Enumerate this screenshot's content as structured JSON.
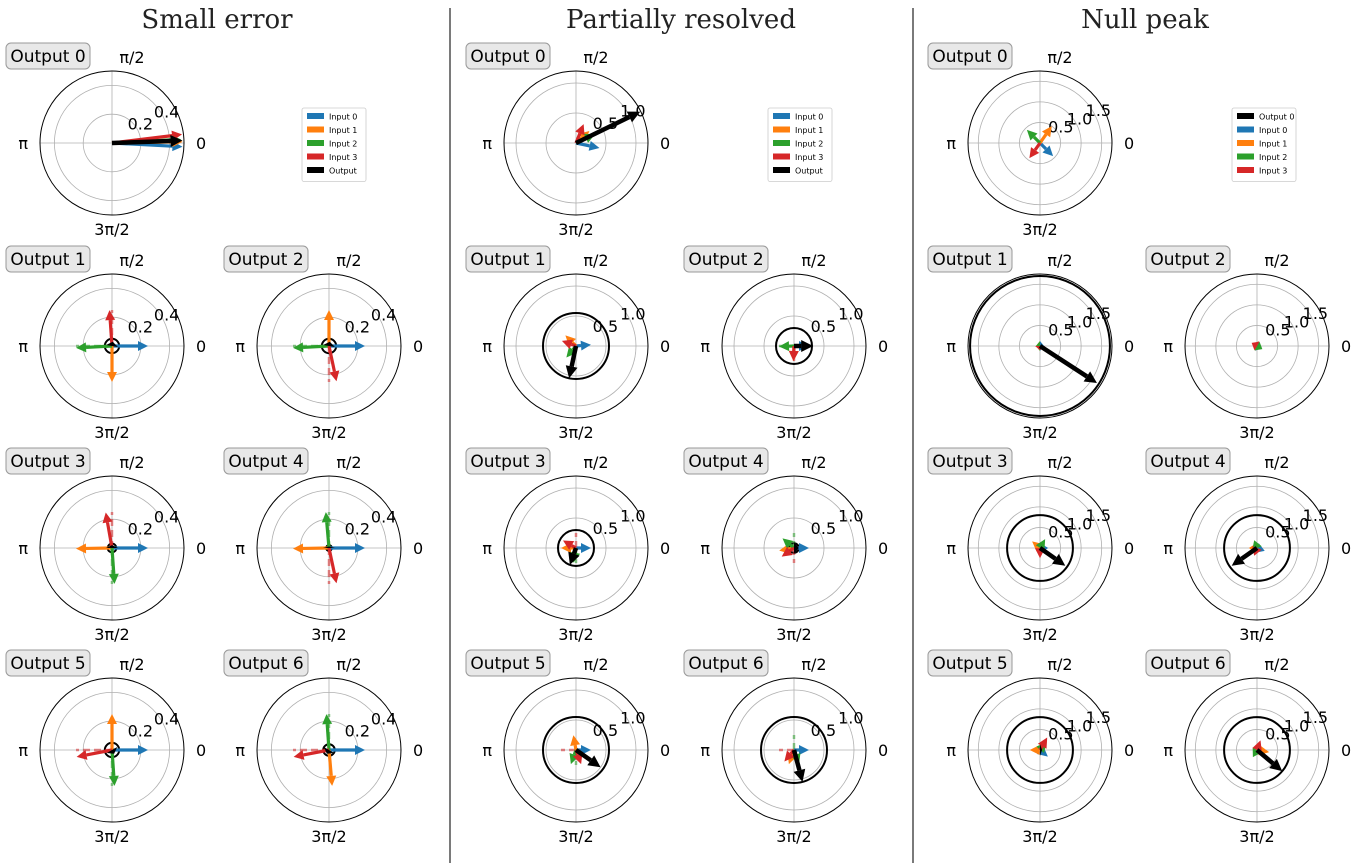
{
  "colors": {
    "Input 0": "#1f77b4",
    "Input 1": "#ff7f0e",
    "Input 2": "#2ca02c",
    "Input 3": "#d62728",
    "Output": "#000000",
    "Output 0": "#000000",
    "grid": "#b0b0b0"
  },
  "chart_data": [
    {
      "type": "polar-vector",
      "title": "Small error",
      "angle_ticks": [
        "0",
        "π/2",
        "π",
        "3π/2"
      ],
      "radial_ticks": [
        "0.2",
        "0.4"
      ],
      "rmax": 0.5,
      "legend": [
        "Input 0",
        "Input 1",
        "Input 2",
        "Input 3",
        "Output"
      ],
      "panels": [
        {
          "label": "Output 0",
          "circle_r": null,
          "vectors": [
            {
              "series": "Input 0",
              "r": 0.49,
              "theta": -3
            },
            {
              "series": "Input 1",
              "r": 0.49,
              "theta": 1
            },
            {
              "series": "Input 2",
              "r": 0.48,
              "theta": 3
            },
            {
              "series": "Input 3",
              "r": 0.49,
              "theta": 7
            },
            {
              "series": "Output",
              "r": 0.49,
              "theta": 2
            }
          ],
          "dashed": []
        },
        {
          "label": "Output 1",
          "circle_r": 0.05,
          "vectors": [
            {
              "series": "Input 0",
              "r": 0.25,
              "theta": 0
            },
            {
              "series": "Input 1",
              "r": 0.25,
              "theta": 270
            },
            {
              "series": "Input 2",
              "r": 0.25,
              "theta": 183
            },
            {
              "series": "Input 3",
              "r": 0.25,
              "theta": 94
            },
            {
              "series": "Output",
              "r": 0.03,
              "theta": 80
            }
          ],
          "dashed": [
            {
              "series": "Input 2",
              "r": 0.25,
              "theta": 180
            },
            {
              "series": "Input 3",
              "r": 0.25,
              "theta": 90
            }
          ]
        },
        {
          "label": "Output 2",
          "circle_r": 0.05,
          "vectors": [
            {
              "series": "Input 0",
              "r": 0.25,
              "theta": 0
            },
            {
              "series": "Input 1",
              "r": 0.25,
              "theta": 90
            },
            {
              "series": "Input 2",
              "r": 0.25,
              "theta": 183
            },
            {
              "series": "Input 3",
              "r": 0.25,
              "theta": 282
            },
            {
              "series": "Output",
              "r": 0.03,
              "theta": 80
            }
          ],
          "dashed": [
            {
              "series": "Input 2",
              "r": 0.25,
              "theta": 180
            },
            {
              "series": "Input 3",
              "r": 0.25,
              "theta": 270
            }
          ]
        },
        {
          "label": "Output 3",
          "circle_r": 0.03,
          "vectors": [
            {
              "series": "Input 0",
              "r": 0.25,
              "theta": 0
            },
            {
              "series": "Input 1",
              "r": 0.25,
              "theta": 181
            },
            {
              "series": "Input 2",
              "r": 0.25,
              "theta": 274
            },
            {
              "series": "Input 3",
              "r": 0.25,
              "theta": 100
            },
            {
              "series": "Output",
              "r": 0.02,
              "theta": 90
            }
          ],
          "dashed": [
            {
              "series": "Input 3",
              "r": 0.25,
              "theta": 90
            },
            {
              "series": "Input 2",
              "r": 0.25,
              "theta": 270
            }
          ]
        },
        {
          "label": "Output 4",
          "circle_r": 0.02,
          "vectors": [
            {
              "series": "Input 0",
              "r": 0.25,
              "theta": 0
            },
            {
              "series": "Input 1",
              "r": 0.25,
              "theta": 181
            },
            {
              "series": "Input 2",
              "r": 0.25,
              "theta": 95
            },
            {
              "series": "Input 3",
              "r": 0.25,
              "theta": 282
            },
            {
              "series": "Output",
              "r": 0.01,
              "theta": 90
            }
          ],
          "dashed": [
            {
              "series": "Input 2",
              "r": 0.25,
              "theta": 90
            },
            {
              "series": "Input 3",
              "r": 0.25,
              "theta": 270
            }
          ]
        },
        {
          "label": "Output 5",
          "circle_r": 0.05,
          "vectors": [
            {
              "series": "Input 0",
              "r": 0.25,
              "theta": 0
            },
            {
              "series": "Input 1",
              "r": 0.25,
              "theta": 90
            },
            {
              "series": "Input 2",
              "r": 0.25,
              "theta": 274
            },
            {
              "series": "Input 3",
              "r": 0.25,
              "theta": 191
            },
            {
              "series": "Output",
              "r": 0.03,
              "theta": 300
            }
          ],
          "dashed": [
            {
              "series": "Input 3",
              "r": 0.25,
              "theta": 180
            },
            {
              "series": "Input 2",
              "r": 0.25,
              "theta": 270
            }
          ]
        },
        {
          "label": "Output 6",
          "circle_r": 0.04,
          "vectors": [
            {
              "series": "Input 0",
              "r": 0.25,
              "theta": 0
            },
            {
              "series": "Input 1",
              "r": 0.25,
              "theta": 275
            },
            {
              "series": "Input 2",
              "r": 0.25,
              "theta": 94
            },
            {
              "series": "Input 3",
              "r": 0.25,
              "theta": 191
            },
            {
              "series": "Output",
              "r": 0.03,
              "theta": 240
            }
          ],
          "dashed": [
            {
              "series": "Input 3",
              "r": 0.25,
              "theta": 180
            },
            {
              "series": "Input 2",
              "r": 0.25,
              "theta": 90
            }
          ]
        }
      ]
    },
    {
      "type": "polar-vector",
      "title": "Partially resolved",
      "angle_ticks": [
        "0",
        "π/2",
        "π",
        "3π/2"
      ],
      "radial_ticks": [
        "0.5",
        "1.0"
      ],
      "rmax": 1.2,
      "legend": [
        "Input 0",
        "Input 1",
        "Input 2",
        "Input 3",
        "Output"
      ],
      "panels": [
        {
          "label": "Output 0",
          "circle_r": null,
          "vectors": [
            {
              "series": "Input 0",
              "r": 0.4,
              "theta": -12
            },
            {
              "series": "Input 1",
              "r": 0.3,
              "theta": 42
            },
            {
              "series": "Input 2",
              "r": 0.35,
              "theta": 25
            },
            {
              "series": "Input 3",
              "r": 0.34,
              "theta": 68
            },
            {
              "series": "Output",
              "r": 1.19,
              "theta": 26
            }
          ],
          "dashed": []
        },
        {
          "label": "Output 1",
          "circle_r": 0.55,
          "vectors": [
            {
              "series": "Input 0",
              "r": 0.25,
              "theta": 5
            },
            {
              "series": "Input 1",
              "r": 0.25,
              "theta": 135
            },
            {
              "series": "Input 2",
              "r": 0.25,
              "theta": 230
            },
            {
              "series": "Input 3",
              "r": 0.25,
              "theta": 160
            },
            {
              "series": "Output",
              "r": 0.55,
              "theta": 258
            }
          ],
          "dashed": []
        },
        {
          "label": "Output 2",
          "circle_r": 0.3,
          "vectors": [
            {
              "series": "Input 0",
              "r": 0.25,
              "theta": 0
            },
            {
              "series": "Input 1",
              "r": 0.25,
              "theta": 268
            },
            {
              "series": "Input 2",
              "r": 0.25,
              "theta": 182
            },
            {
              "series": "Input 3",
              "r": 0.25,
              "theta": 268
            },
            {
              "series": "Output",
              "r": 0.32,
              "theta": 0
            }
          ],
          "dashed": [
            {
              "series": "Input 3",
              "r": 0.25,
              "theta": 270
            },
            {
              "series": "Input 2",
              "r": 0.25,
              "theta": 180
            }
          ]
        },
        {
          "label": "Output 3",
          "circle_r": 0.3,
          "vectors": [
            {
              "series": "Input 0",
              "r": 0.25,
              "theta": 0
            },
            {
              "series": "Input 1",
              "r": 0.25,
              "theta": 180
            },
            {
              "series": "Input 2",
              "r": 0.25,
              "theta": 260
            },
            {
              "series": "Input 3",
              "r": 0.25,
              "theta": 150
            },
            {
              "series": "Output",
              "r": 0.3,
              "theta": 250
            }
          ],
          "dashed": [
            {
              "series": "Input 3",
              "r": 0.25,
              "theta": 90
            },
            {
              "series": "Input 2",
              "r": 0.25,
              "theta": 270
            }
          ]
        },
        {
          "label": "Output 4",
          "circle_r": 0.08,
          "vectors": [
            {
              "series": "Input 0",
              "r": 0.25,
              "theta": 0
            },
            {
              "series": "Input 1",
              "r": 0.25,
              "theta": 190
            },
            {
              "series": "Input 2",
              "r": 0.25,
              "theta": 140
            },
            {
              "series": "Input 3",
              "r": 0.25,
              "theta": 215
            },
            {
              "series": "Output",
              "r": 0.08,
              "theta": 0
            }
          ],
          "dashed": [
            {
              "series": "Input 2",
              "r": 0.25,
              "theta": 90
            },
            {
              "series": "Input 3",
              "r": 0.25,
              "theta": 270
            }
          ]
        },
        {
          "label": "Output 5",
          "circle_r": 0.55,
          "vectors": [
            {
              "series": "Input 0",
              "r": 0.25,
              "theta": 0
            },
            {
              "series": "Input 1",
              "r": 0.25,
              "theta": 100
            },
            {
              "series": "Input 2",
              "r": 0.25,
              "theta": 250
            },
            {
              "series": "Input 3",
              "r": 0.25,
              "theta": 290
            },
            {
              "series": "Output",
              "r": 0.5,
              "theta": 325
            }
          ],
          "dashed": [
            {
              "series": "Input 3",
              "r": 0.25,
              "theta": 180
            },
            {
              "series": "Input 2",
              "r": 0.25,
              "theta": 270
            }
          ]
        },
        {
          "label": "Output 6",
          "circle_r": 0.55,
          "vectors": [
            {
              "series": "Input 0",
              "r": 0.25,
              "theta": 0
            },
            {
              "series": "Input 1",
              "r": 0.25,
              "theta": 250
            },
            {
              "series": "Input 2",
              "r": 0.25,
              "theta": 290
            },
            {
              "series": "Input 3",
              "r": 0.25,
              "theta": 230
            },
            {
              "series": "Output",
              "r": 0.55,
              "theta": 285
            }
          ],
          "dashed": [
            {
              "series": "Input 3",
              "r": 0.25,
              "theta": 180
            },
            {
              "series": "Input 2",
              "r": 0.25,
              "theta": 90
            }
          ]
        }
      ]
    },
    {
      "type": "polar-vector",
      "title": "Null peak",
      "angle_ticks": [
        "0",
        "π/2",
        "π",
        "3π/2"
      ],
      "radial_ticks": [
        "0.5",
        "1.0",
        "1.5"
      ],
      "rmax": 1.75,
      "legend": [
        "Output 0",
        "Input 0",
        "Input 1",
        "Input 2",
        "Input 3"
      ],
      "panels": [
        {
          "label": "Output 0",
          "circle_r": null,
          "vectors": [
            {
              "series": "Input 0",
              "r": 0.45,
              "theta": -45
            },
            {
              "series": "Input 1",
              "r": 0.5,
              "theta": 55
            },
            {
              "series": "Input 2",
              "r": 0.45,
              "theta": 135
            },
            {
              "series": "Input 3",
              "r": 0.45,
              "theta": 235
            }
          ],
          "dashed": []
        },
        {
          "label": "Output 1",
          "circle_r": 1.7,
          "vectors": [
            {
              "series": "Input 0",
              "r": 0.1,
              "theta": 0
            },
            {
              "series": "Input 1",
              "r": 0.1,
              "theta": 180
            },
            {
              "series": "Input 2",
              "r": 0.1,
              "theta": 180
            },
            {
              "series": "Input 3",
              "r": 0.1,
              "theta": 270
            },
            {
              "series": "Output 0",
              "r": 1.65,
              "theta": -33
            }
          ],
          "dashed": []
        },
        {
          "label": "Output 2",
          "circle_r": 0.02,
          "vectors": [
            {
              "series": "Input 0",
              "r": 0.12,
              "theta": -20
            },
            {
              "series": "Input 1",
              "r": 0.12,
              "theta": 160
            },
            {
              "series": "Input 2",
              "r": 0.15,
              "theta": -30
            },
            {
              "series": "Input 3",
              "r": 0.15,
              "theta": 150
            }
          ],
          "dashed": []
        },
        {
          "label": "Output 3",
          "circle_r": 0.8,
          "vectors": [
            {
              "series": "Input 0",
              "r": 0.2,
              "theta": 0
            },
            {
              "series": "Input 1",
              "r": 0.25,
              "theta": 140
            },
            {
              "series": "Input 2",
              "r": 0.25,
              "theta": 60
            },
            {
              "series": "Input 3",
              "r": 0.25,
              "theta": 270
            },
            {
              "series": "Output 0",
              "r": 0.75,
              "theta": -35
            }
          ],
          "dashed": []
        },
        {
          "label": "Output 4",
          "circle_r": 0.8,
          "vectors": [
            {
              "series": "Input 0",
              "r": 0.2,
              "theta": -20
            },
            {
              "series": "Input 1",
              "r": 0.2,
              "theta": 180
            },
            {
              "series": "Input 2",
              "r": 0.2,
              "theta": 110
            },
            {
              "series": "Input 3",
              "r": 0.2,
              "theta": 250
            },
            {
              "series": "Output 0",
              "r": 0.75,
              "theta": 215
            }
          ],
          "dashed": []
        },
        {
          "label": "Output 5",
          "circle_r": 0.8,
          "vectors": [
            {
              "series": "Input 0",
              "r": 0.25,
              "theta": -40
            },
            {
              "series": "Input 1",
              "r": 0.25,
              "theta": 180
            },
            {
              "series": "Input 2",
              "r": 0.25,
              "theta": 50
            },
            {
              "series": "Input 3",
              "r": 0.35,
              "theta": 60
            },
            {
              "series": "Output 0",
              "r": 0.05,
              "theta": 0
            }
          ],
          "dashed": []
        },
        {
          "label": "Output 6",
          "circle_r": 0.8,
          "vectors": [
            {
              "series": "Input 0",
              "r": 0.2,
              "theta": 0
            },
            {
              "series": "Input 1",
              "r": 0.3,
              "theta": -10
            },
            {
              "series": "Input 2",
              "r": 0.2,
              "theta": 240
            },
            {
              "series": "Input 3",
              "r": 0.25,
              "theta": 70
            },
            {
              "series": "Output 0",
              "r": 0.8,
              "theta": -40
            }
          ],
          "dashed": []
        }
      ]
    }
  ]
}
